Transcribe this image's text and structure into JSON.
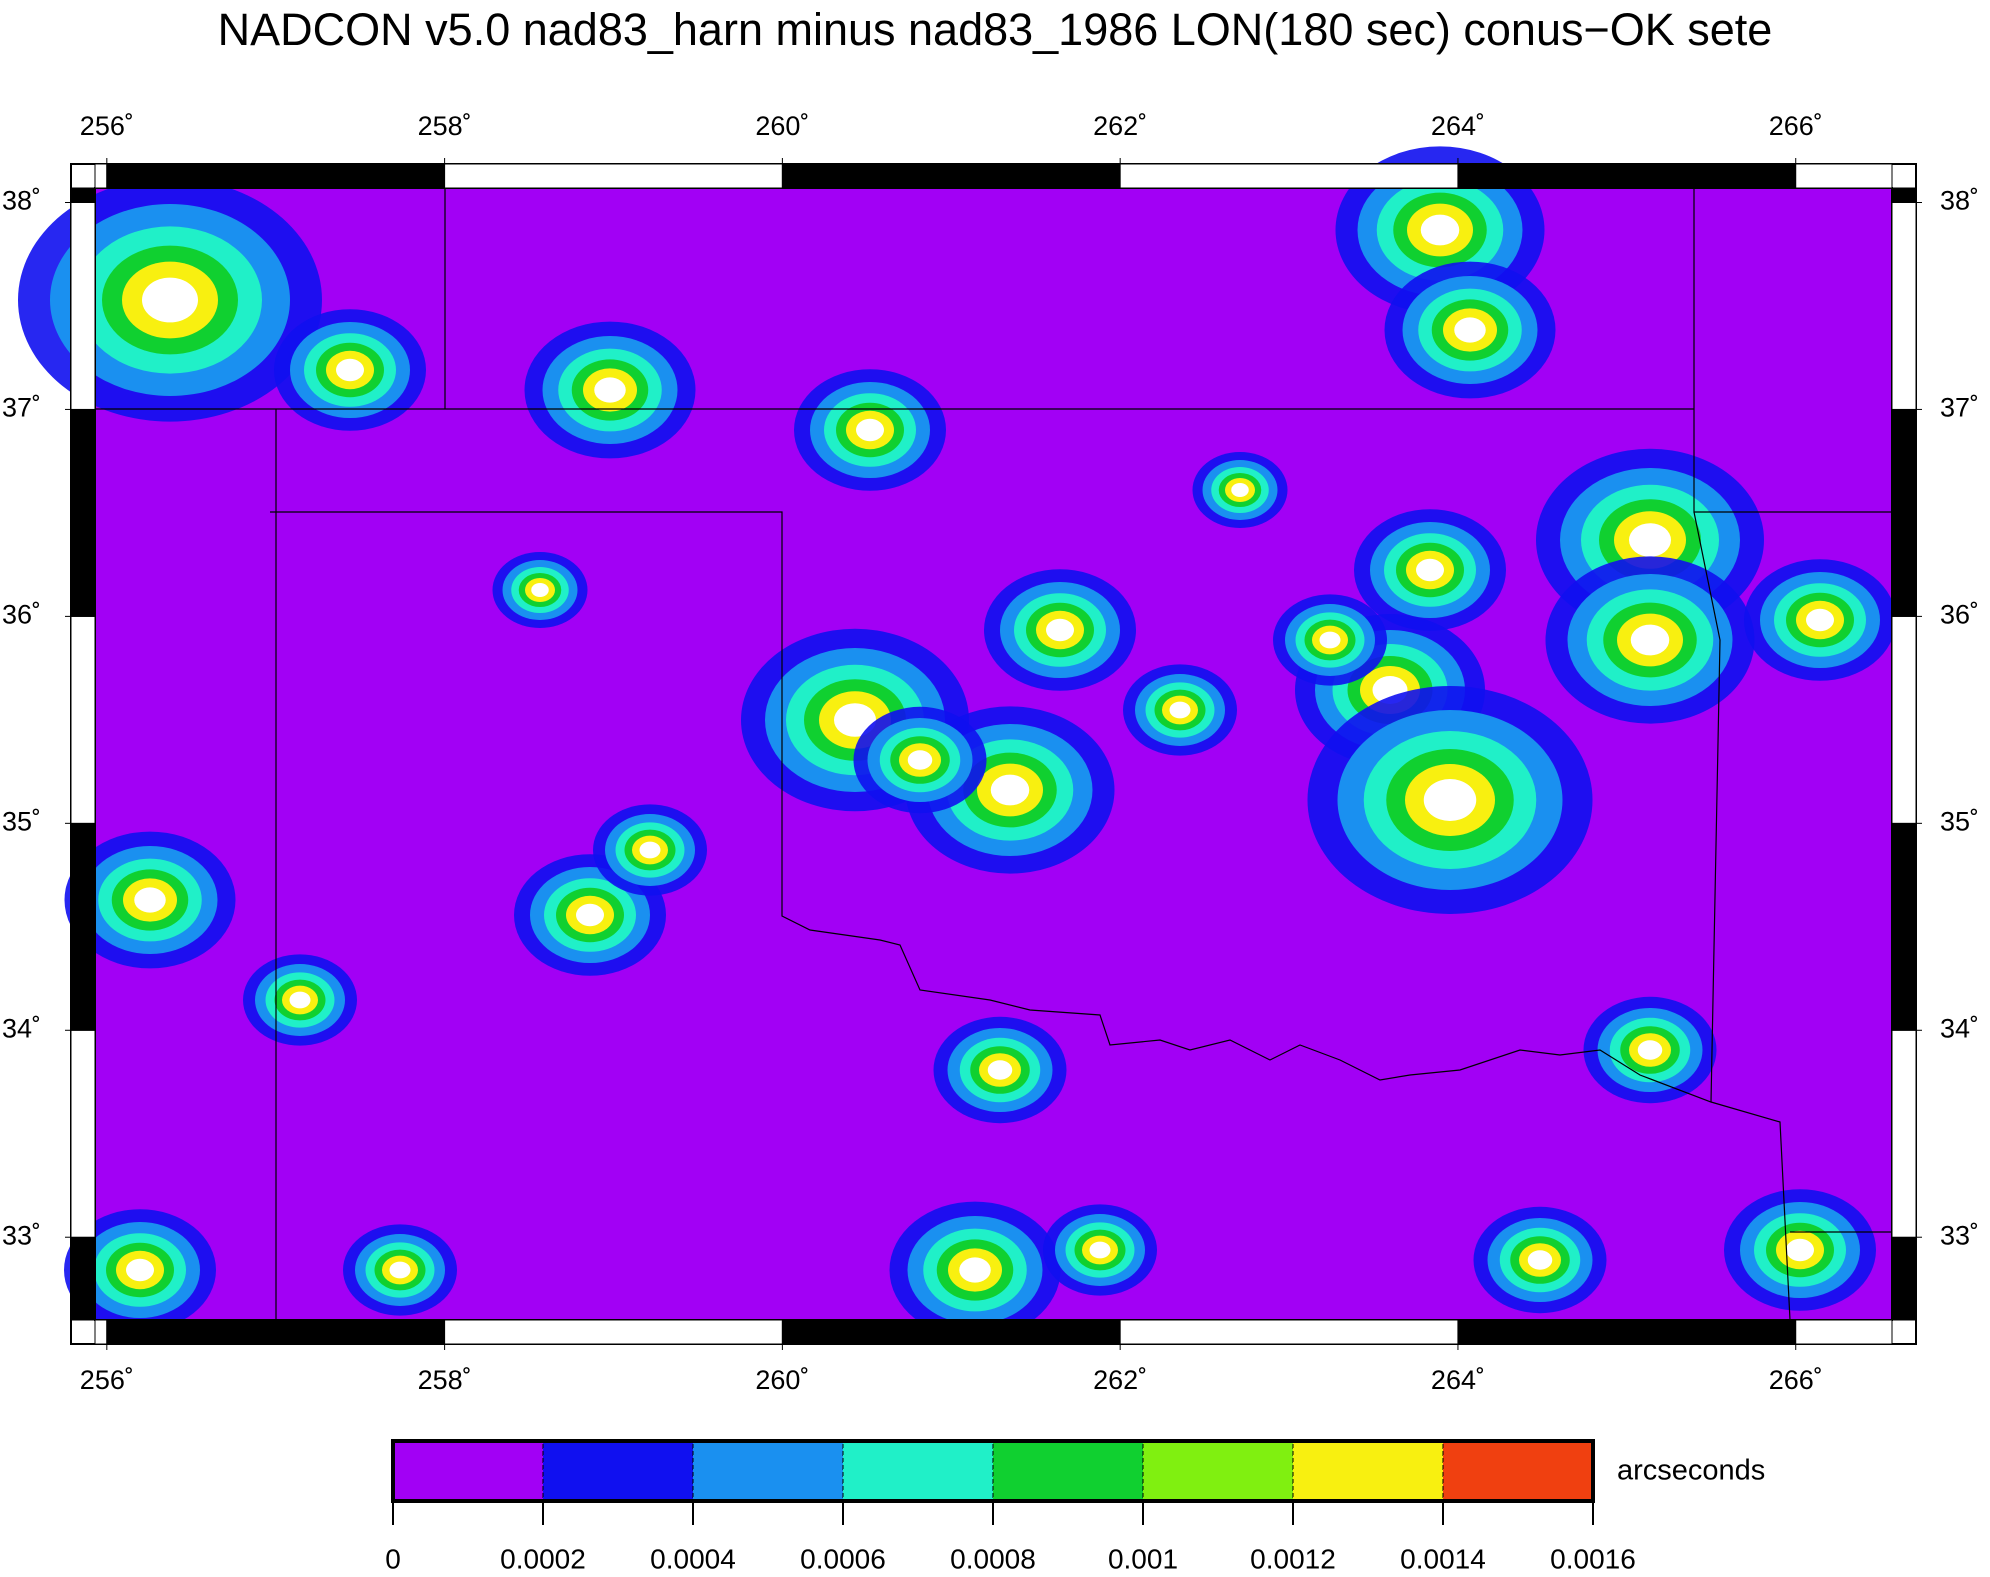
{
  "title": "NADCON v5.0 nad83_harn minus nad83_1986 LON(180 sec) conus−OK sete",
  "map": {
    "xlim": [
      255.93,
      266.57
    ],
    "ylim": [
      32.6,
      38.07
    ],
    "xticks": [
      {
        "value": 256,
        "label": "256˚"
      },
      {
        "value": 258,
        "label": "258˚"
      },
      {
        "value": 260,
        "label": "260˚"
      },
      {
        "value": 262,
        "label": "262˚"
      },
      {
        "value": 264,
        "label": "264˚"
      },
      {
        "value": 266,
        "label": "266˚"
      }
    ],
    "yticks": [
      {
        "value": 33,
        "label": "33˚"
      },
      {
        "value": 34,
        "label": "34˚"
      },
      {
        "value": 35,
        "label": "35˚"
      },
      {
        "value": 36,
        "label": "36˚"
      },
      {
        "value": 37,
        "label": "37˚"
      },
      {
        "value": 38,
        "label": "38˚"
      }
    ]
  },
  "colorbar": {
    "label": "arcseconds",
    "ticks": [
      0,
      0.0002,
      0.0004,
      0.0006,
      0.0008,
      0.001,
      0.0012,
      0.0014,
      0.0016
    ],
    "colors": [
      "#a200f5",
      "#1010f0",
      "#1a90f0",
      "#20f0c8",
      "#10d030",
      "#80f010",
      "#f8f010",
      "#f04010"
    ]
  }
}
